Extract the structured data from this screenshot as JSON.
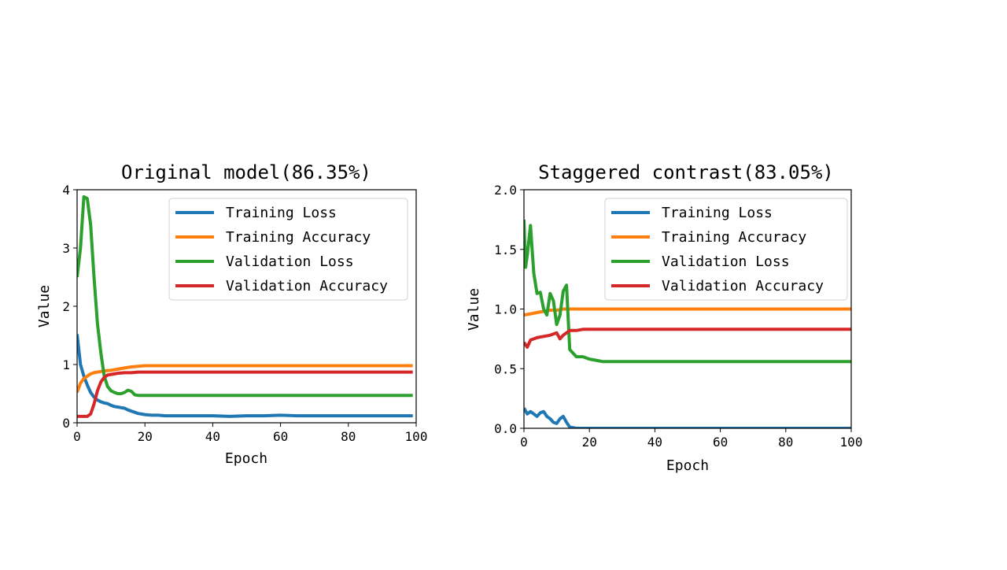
{
  "chart_data": [
    {
      "type": "line",
      "title": "Original model(86.35%)",
      "xlabel": "Epoch",
      "ylabel": "Value",
      "xlim": [
        0,
        100
      ],
      "ylim": [
        0,
        4
      ],
      "xticks": [
        "0",
        "20",
        "40",
        "60",
        "80",
        "100"
      ],
      "yticks": [
        "0",
        "1",
        "2",
        "3",
        "4"
      ],
      "legend_position": "top-right",
      "grid": false,
      "series": [
        {
          "name": "Training Loss",
          "color": "#1f77b4",
          "x": [
            0,
            1,
            2,
            3,
            4,
            5,
            6,
            7,
            8,
            9,
            10,
            11,
            12,
            13,
            14,
            15,
            16,
            17,
            18,
            19,
            20,
            22,
            24,
            26,
            28,
            30,
            35,
            40,
            45,
            50,
            55,
            60,
            65,
            70,
            75,
            80,
            85,
            90,
            95,
            99
          ],
          "y": [
            1.52,
            1.0,
            0.8,
            0.65,
            0.52,
            0.44,
            0.39,
            0.36,
            0.34,
            0.33,
            0.3,
            0.28,
            0.27,
            0.26,
            0.25,
            0.22,
            0.2,
            0.18,
            0.16,
            0.15,
            0.14,
            0.13,
            0.13,
            0.12,
            0.12,
            0.12,
            0.12,
            0.12,
            0.11,
            0.12,
            0.12,
            0.13,
            0.12,
            0.12,
            0.12,
            0.12,
            0.12,
            0.12,
            0.12,
            0.12
          ]
        },
        {
          "name": "Training Accuracy",
          "color": "#ff7f0e",
          "x": [
            0,
            1,
            2,
            3,
            4,
            5,
            6,
            7,
            8,
            10,
            12,
            14,
            16,
            18,
            20,
            25,
            30,
            40,
            50,
            60,
            70,
            80,
            90,
            99
          ],
          "y": [
            0.52,
            0.68,
            0.76,
            0.8,
            0.84,
            0.86,
            0.87,
            0.88,
            0.89,
            0.9,
            0.92,
            0.94,
            0.96,
            0.97,
            0.98,
            0.98,
            0.98,
            0.98,
            0.98,
            0.98,
            0.98,
            0.98,
            0.98,
            0.98
          ]
        },
        {
          "name": "Validation Loss",
          "color": "#2ca02c",
          "x": [
            0,
            1,
            2,
            3,
            4,
            5,
            6,
            7,
            8,
            9,
            10,
            11,
            12,
            13,
            14,
            15,
            16,
            17,
            18,
            20,
            25,
            30,
            40,
            50,
            60,
            70,
            80,
            90,
            99
          ],
          "y": [
            2.5,
            3.0,
            3.88,
            3.85,
            3.4,
            2.5,
            1.7,
            1.2,
            0.8,
            0.62,
            0.55,
            0.52,
            0.5,
            0.5,
            0.52,
            0.56,
            0.54,
            0.48,
            0.47,
            0.47,
            0.47,
            0.47,
            0.47,
            0.47,
            0.47,
            0.47,
            0.47,
            0.47,
            0.47
          ]
        },
        {
          "name": "Validation Accuracy",
          "color": "#d62728",
          "x": [
            0,
            1,
            2,
            3,
            4,
            5,
            6,
            7,
            8,
            9,
            10,
            12,
            14,
            16,
            18,
            20,
            25,
            30,
            40,
            50,
            60,
            70,
            80,
            90,
            99
          ],
          "y": [
            0.11,
            0.11,
            0.11,
            0.11,
            0.15,
            0.32,
            0.55,
            0.7,
            0.78,
            0.82,
            0.83,
            0.85,
            0.86,
            0.86,
            0.87,
            0.87,
            0.87,
            0.87,
            0.87,
            0.87,
            0.87,
            0.87,
            0.87,
            0.87,
            0.87
          ]
        }
      ]
    },
    {
      "type": "line",
      "title": "Staggered contrast(83.05%)",
      "xlabel": "Epoch",
      "ylabel": "Value",
      "xlim": [
        0,
        100
      ],
      "ylim": [
        0,
        2
      ],
      "xticks": [
        "0",
        "20",
        "40",
        "60",
        "80",
        "100"
      ],
      "yticks": [
        "0.0",
        "0.5",
        "1.0",
        "1.5",
        "2.0"
      ],
      "legend_position": "top-right",
      "grid": false,
      "series": [
        {
          "name": "Training Loss",
          "color": "#1f77b4",
          "x": [
            0,
            1,
            2,
            3,
            4,
            5,
            6,
            7,
            8,
            9,
            10,
            11,
            12,
            13,
            14,
            16,
            20,
            30,
            40,
            50,
            60,
            70,
            80,
            90,
            100
          ],
          "y": [
            0.17,
            0.12,
            0.14,
            0.12,
            0.1,
            0.13,
            0.14,
            0.1,
            0.08,
            0.05,
            0.04,
            0.08,
            0.1,
            0.05,
            0.01,
            0.0,
            0.0,
            0.0,
            0.0,
            0.0,
            0.0,
            0.0,
            0.0,
            0.0,
            0.0
          ]
        },
        {
          "name": "Training Accuracy",
          "color": "#ff7f0e",
          "x": [
            0,
            2,
            4,
            6,
            8,
            10,
            12,
            14,
            16,
            20,
            30,
            40,
            50,
            60,
            70,
            80,
            90,
            100
          ],
          "y": [
            0.95,
            0.96,
            0.97,
            0.98,
            0.99,
            0.99,
            1.0,
            1.0,
            1.0,
            1.0,
            1.0,
            1.0,
            1.0,
            1.0,
            1.0,
            1.0,
            1.0,
            1.0
          ]
        },
        {
          "name": "Validation Loss",
          "color": "#2ca02c",
          "x": [
            0,
            0.5,
            1,
            2,
            3,
            4,
            5,
            6,
            7,
            8,
            9,
            10,
            11,
            12,
            13,
            14,
            16,
            18,
            20,
            22,
            24,
            30,
            40,
            50,
            60,
            70,
            80,
            90,
            100
          ],
          "y": [
            1.75,
            1.35,
            1.45,
            1.7,
            1.3,
            1.13,
            1.14,
            1.0,
            0.95,
            1.13,
            1.07,
            0.87,
            0.95,
            1.15,
            1.2,
            0.66,
            0.6,
            0.6,
            0.58,
            0.57,
            0.56,
            0.56,
            0.56,
            0.56,
            0.56,
            0.56,
            0.56,
            0.56,
            0.56
          ]
        },
        {
          "name": "Validation Accuracy",
          "color": "#d62728",
          "x": [
            0,
            1,
            2,
            3,
            4,
            6,
            8,
            10,
            11,
            12,
            13,
            14,
            16,
            18,
            20,
            30,
            40,
            50,
            60,
            70,
            80,
            90,
            100
          ],
          "y": [
            0.72,
            0.68,
            0.74,
            0.75,
            0.76,
            0.77,
            0.78,
            0.8,
            0.75,
            0.78,
            0.8,
            0.82,
            0.82,
            0.83,
            0.83,
            0.83,
            0.83,
            0.83,
            0.83,
            0.83,
            0.83,
            0.83,
            0.83
          ]
        }
      ]
    }
  ]
}
